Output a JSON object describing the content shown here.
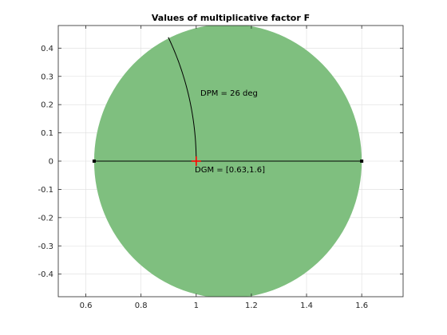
{
  "chart_data": {
    "type": "scatter",
    "title": "Values of multiplicative factor F",
    "xlabel": "",
    "ylabel": "",
    "xlim": [
      0.5,
      1.75
    ],
    "ylim": [
      -0.48,
      0.48
    ],
    "x_ticks": [
      0.6,
      0.8,
      1.0,
      1.2,
      1.4,
      1.6
    ],
    "x_tick_labels": [
      "0.6",
      "0.8",
      "1",
      "1.2",
      "1.4",
      "1.6"
    ],
    "y_ticks": [
      0.4,
      0.3,
      0.2,
      0.1,
      0.0,
      -0.1,
      -0.2,
      -0.3,
      -0.4
    ],
    "y_tick_labels": [
      "0.4",
      "0.3",
      "0.2",
      "0.1",
      "0",
      "-0.1",
      "-0.2",
      "-0.3",
      "-0.4"
    ],
    "grid": true,
    "disk_region": {
      "real_min": 0.63,
      "real_max": 1.6,
      "color": "#7fbf7f"
    },
    "gain_segment": {
      "x": [
        0.63,
        1.6
      ],
      "y": [
        0,
        0
      ],
      "color": "#000000"
    },
    "phase_arc": {
      "radius": 1.0,
      "angle_deg": 26,
      "color": "#000000"
    },
    "nominal_point": {
      "x": 1,
      "y": 0,
      "color": "#ff0000"
    },
    "annotations": {
      "dpm": "DPM = 26 deg",
      "dgm": "DGM = [0.63,1.6]"
    }
  }
}
